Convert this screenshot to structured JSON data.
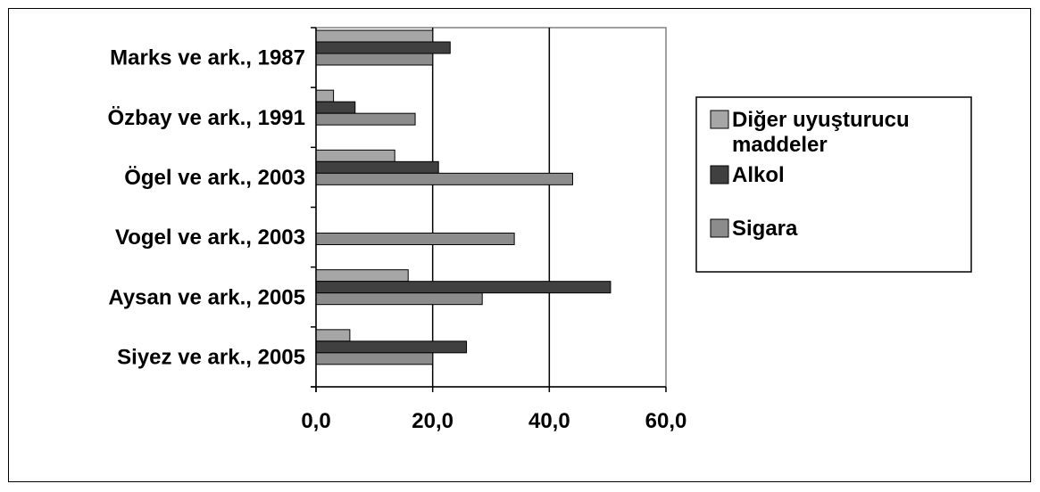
{
  "chart_data": {
    "type": "bar",
    "orientation": "horizontal",
    "categories": [
      "Marks ve ark., 1987",
      "Özbay ve ark., 1991",
      "Ögel ve ark., 2003",
      "Vogel ve ark., 2003",
      "Aysan ve ark., 2005",
      "Siyez ve ark., 2005"
    ],
    "series": [
      {
        "name": "Diğer uyuşturucu maddeler",
        "color": "#a6a6a6",
        "values": [
          20.0,
          3.0,
          13.5,
          null,
          15.8,
          5.8
        ]
      },
      {
        "name": "Alkol",
        "color": "#404040",
        "values": [
          23.0,
          6.7,
          21.0,
          null,
          50.5,
          25.8
        ]
      },
      {
        "name": "Sigara",
        "color": "#8c8c8c",
        "values": [
          20.0,
          17.0,
          44.0,
          34.0,
          28.5,
          20.0
        ]
      }
    ],
    "xlim": [
      0,
      60
    ],
    "xticks": [
      "0,0",
      "20,0",
      "40,0",
      "60,0"
    ],
    "grid": true,
    "legend_position": "right",
    "title": "",
    "xlabel": "",
    "ylabel": ""
  }
}
